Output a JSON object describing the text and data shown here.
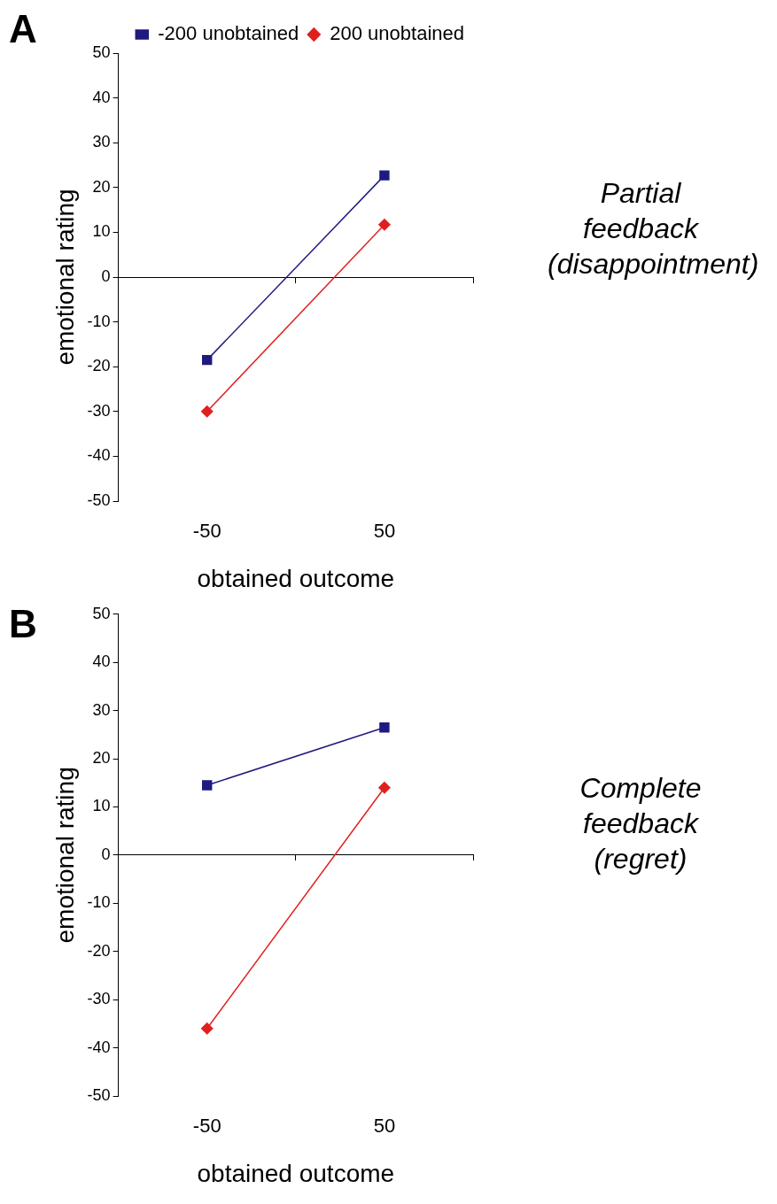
{
  "chart_data": [
    {
      "type": "line",
      "title": "A",
      "xlabel": "obtained outcome",
      "ylabel": "emotional rating",
      "categories": [
        "-50",
        "50"
      ],
      "ylim": [
        -50,
        50
      ],
      "yticks": [
        -50,
        -40,
        -30,
        -20,
        -10,
        0,
        10,
        20,
        30,
        40,
        50
      ],
      "legend": "top right",
      "annotations": [
        "Partial feedback (disappointment)"
      ],
      "series": [
        {
          "name": "-200 unobtained",
          "color": "#1f1a80",
          "marker": "square",
          "values": [
            -18.5,
            22.7
          ]
        },
        {
          "name": "200 unobtained",
          "color": "#e02020",
          "marker": "diamond",
          "values": [
            -30,
            11.7
          ]
        }
      ]
    },
    {
      "type": "line",
      "title": "B",
      "xlabel": "obtained outcome",
      "ylabel": "emotional rating",
      "categories": [
        "-50",
        "50"
      ],
      "ylim": [
        -50,
        50
      ],
      "yticks": [
        -50,
        -40,
        -30,
        -20,
        -10,
        0,
        10,
        20,
        30,
        40,
        50
      ],
      "annotations": [
        "Complete feedback (regret)"
      ],
      "series": [
        {
          "color": "#1f1a80",
          "marker": "square",
          "values": [
            14.5,
            26.5
          ]
        },
        {
          "color": "#e02020",
          "marker": "diamond",
          "values": [
            -36,
            14
          ]
        }
      ]
    }
  ]
}
